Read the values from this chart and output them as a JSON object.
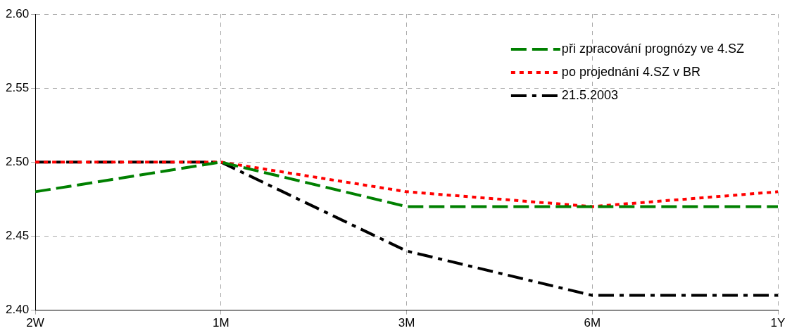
{
  "chart_data": {
    "type": "line",
    "categories": [
      "2W",
      "1M",
      "3M",
      "6M",
      "1Y"
    ],
    "series": [
      {
        "name": "při zpracování prognózy ve 4.SZ",
        "color": "#008000",
        "line_style": "dashed",
        "values": [
          2.48,
          2.5,
          2.47,
          2.47,
          2.47
        ]
      },
      {
        "name": "po projednání 4.SZ v BR",
        "color": "#ff0000",
        "line_style": "dotted",
        "values": [
          2.5,
          2.5,
          2.48,
          2.47,
          2.48
        ]
      },
      {
        "name": "21.5.2003",
        "color": "#000000",
        "line_style": "dashdot",
        "values": [
          2.5,
          2.5,
          2.44,
          2.41,
          2.41
        ]
      }
    ],
    "ylim": [
      2.4,
      2.6
    ],
    "yticks": [
      {
        "value": 2.4,
        "label": "2.40"
      },
      {
        "value": 2.45,
        "label": "2.45"
      },
      {
        "value": 2.5,
        "label": "2.50"
      },
      {
        "value": 2.55,
        "label": "2.55"
      },
      {
        "value": 2.6,
        "label": "2.60"
      }
    ],
    "grid": true,
    "legend": "top right",
    "marker": "none"
  }
}
